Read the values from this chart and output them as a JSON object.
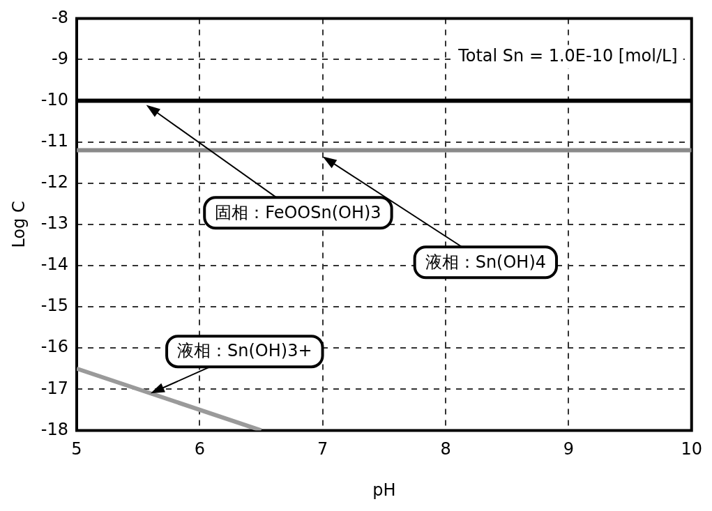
{
  "chart_data": {
    "type": "line",
    "xlabel": "pH",
    "ylabel": "Log C",
    "xlim": [
      5,
      10
    ],
    "xticks": [
      5,
      6,
      7,
      8,
      9,
      10
    ],
    "ylim": [
      -18,
      -8
    ],
    "yticks": [
      -18,
      -17,
      -16,
      -15,
      -14,
      -13,
      -12,
      -11,
      -10,
      -9,
      -8
    ],
    "grid": true,
    "legend": false,
    "marker": "none",
    "series": [
      {
        "color": "#000000",
        "x": [
          5,
          10
        ],
        "values": [
          -10,
          -10
        ]
      },
      {
        "color": "#8a8a8a",
        "x": [
          5,
          10
        ],
        "values": [
          -11.2,
          -11.2
        ]
      },
      {
        "color": "#9a9a9a",
        "x": [
          5,
          6.5
        ],
        "values": [
          -16.5,
          -18
        ]
      }
    ],
    "annotations": [
      "Total Sn = 1.0E-10 [mol/L]",
      "固相：FeOOSn(OH)3",
      "液相：Sn(OH)4",
      {
        "text": "液相：Sn(OH)3+",
        "x": 5.6,
        "y": -17.1
      }
    ]
  }
}
